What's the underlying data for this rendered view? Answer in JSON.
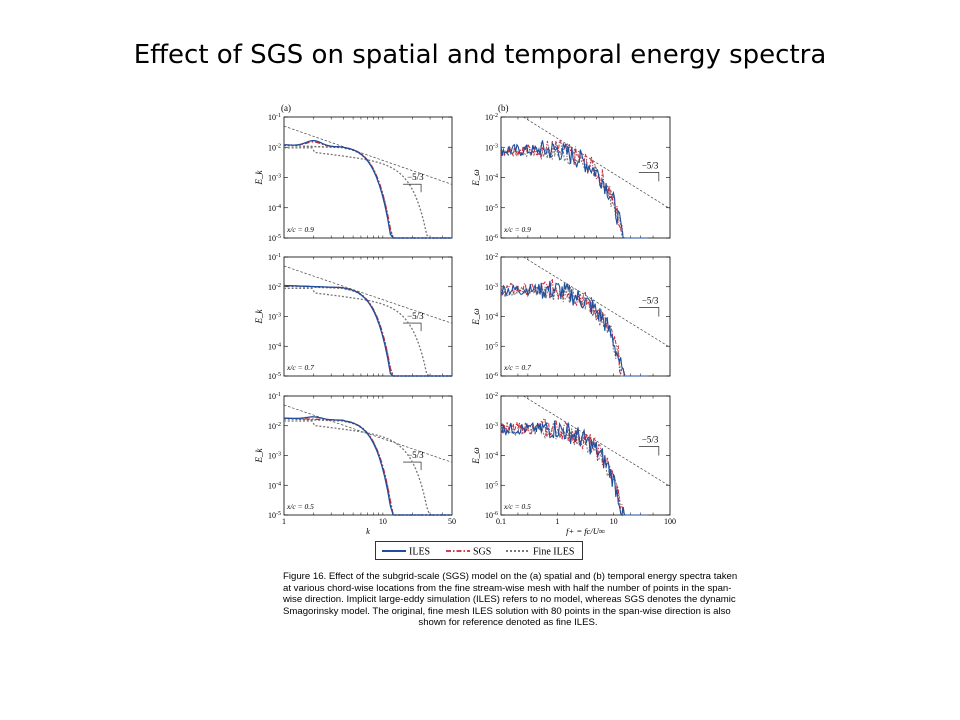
{
  "slide": {
    "title": "Effect of SGS on spatial and temporal energy spectra"
  },
  "figure": {
    "columns": [
      {
        "panel_label": "(a)",
        "ylabel": "E_k",
        "xlabel": "k",
        "x_ticks": [
          "1",
          "10",
          "50"
        ],
        "y_ticks": [
          "10-1",
          "10-2",
          "10-3",
          "10-4",
          "10-5"
        ],
        "slope_label": "−5/3"
      },
      {
        "panel_label": "(b)",
        "ylabel": "E_ω",
        "xlabel": "f+ = fc/U∞",
        "x_ticks": [
          "0.1",
          "1",
          "10",
          "100"
        ],
        "y_ticks": [
          "10-2",
          "10-3",
          "10-4",
          "10-5",
          "10-6"
        ],
        "slope_label": "−5/3"
      }
    ],
    "rows": [
      {
        "location": "x/c = 0.9"
      },
      {
        "location": "x/c = 0.7"
      },
      {
        "location": "x/c = 0.5"
      }
    ],
    "legend": [
      {
        "name": "ILES",
        "color": "#1f4e9c",
        "style": "solid"
      },
      {
        "name": "SGS",
        "color": "#c8283c",
        "style": "dash-dot"
      },
      {
        "name": "Fine ILES",
        "color": "#666666",
        "style": "dotted"
      }
    ],
    "caption_lines": [
      "Figure 16.  Effect of the subgrid-scale (SGS) model on the (a) spatial and (b) temporal energy spectra taken",
      "at various chord-wise locations from the fine stream-wise mesh with half the number of points in the span-",
      "wise direction. Implicit large-eddy simulation (ILES) refers to no model, whereas SGS denotes the dynamic",
      "Smagorinsky model. The original, fine mesh ILES solution with 80 points in the span-wise direction is also",
      "shown for reference denoted as fine ILES."
    ]
  }
}
